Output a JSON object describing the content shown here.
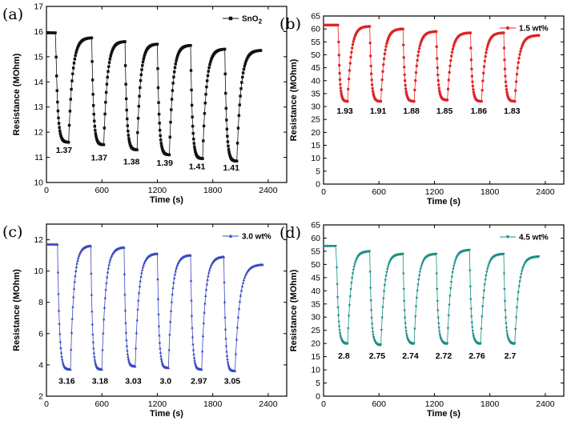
{
  "chart_data": [
    {
      "type": "line",
      "panel_label": "(a)",
      "xlabel": "Time (s)",
      "ylabel": "Resistance (MOhm)",
      "xlim": [
        0,
        2600
      ],
      "ylim": [
        10,
        17
      ],
      "xticks": [
        0,
        600,
        1200,
        1800,
        2400
      ],
      "yticks": [
        10,
        11,
        12,
        13,
        14,
        15,
        16,
        17
      ],
      "legend": "top-right",
      "color": "#111111",
      "marker": "square",
      "series": [
        {
          "name": "SnO2",
          "name_base": "SnO",
          "name_sub": "2"
        }
      ],
      "baseline_start": 15.95,
      "cycles": [
        {
          "t_on": 100,
          "t_off": 240,
          "min": 11.6,
          "peak": 15.75
        },
        {
          "t_on": 490,
          "t_off": 620,
          "min": 11.5,
          "peak": 15.6
        },
        {
          "t_on": 850,
          "t_off": 980,
          "min": 11.3,
          "peak": 15.5
        },
        {
          "t_on": 1200,
          "t_off": 1330,
          "min": 11.1,
          "peak": 15.45
        },
        {
          "t_on": 1560,
          "t_off": 1690,
          "min": 10.95,
          "peak": 15.3
        },
        {
          "t_on": 1930,
          "t_off": 2060,
          "min": 10.85,
          "peak": 15.25
        }
      ],
      "end_time": 2320,
      "annotations": [
        {
          "text": "1.37",
          "x": 190,
          "y": 11.3
        },
        {
          "text": "1.37",
          "x": 570,
          "y": 11.0
        },
        {
          "text": "1.38",
          "x": 920,
          "y": 10.85
        },
        {
          "text": "1.39",
          "x": 1280,
          "y": 10.8
        },
        {
          "text": "1.41",
          "x": 1630,
          "y": 10.65
        },
        {
          "text": "1.41",
          "x": 2000,
          "y": 10.6
        }
      ]
    },
    {
      "type": "line",
      "panel_label": "(b)",
      "xlabel": "Time (s)",
      "ylabel": "Resistance (MOhm)",
      "xlim": [
        0,
        2600
      ],
      "ylim": [
        0,
        65
      ],
      "xticks": [
        0,
        600,
        1200,
        1800,
        2400
      ],
      "yticks": [
        0,
        5,
        10,
        15,
        20,
        25,
        30,
        35,
        40,
        45,
        50,
        55,
        60,
        65
      ],
      "legend": "top-right",
      "color": "#e02424",
      "marker": "circle",
      "series": [
        {
          "name": "1.5 wt%"
        }
      ],
      "baseline_start": 61.5,
      "cycles": [
        {
          "t_on": 160,
          "t_off": 260,
          "min": 32,
          "peak": 61
        },
        {
          "t_on": 500,
          "t_off": 620,
          "min": 32,
          "peak": 60
        },
        {
          "t_on": 860,
          "t_off": 980,
          "min": 32,
          "peak": 59
        },
        {
          "t_on": 1220,
          "t_off": 1340,
          "min": 32.5,
          "peak": 58.5
        },
        {
          "t_on": 1590,
          "t_off": 1710,
          "min": 32,
          "peak": 58.5
        },
        {
          "t_on": 1950,
          "t_off": 2070,
          "min": 32,
          "peak": 57.5
        }
      ],
      "end_time": 2330,
      "annotations": [
        {
          "text": "1.93",
          "x": 230,
          "y": 28.5
        },
        {
          "text": "1.91",
          "x": 590,
          "y": 28.5
        },
        {
          "text": "1.88",
          "x": 950,
          "y": 28.5
        },
        {
          "text": "1.85",
          "x": 1310,
          "y": 28.5
        },
        {
          "text": "1.86",
          "x": 1680,
          "y": 28.5
        },
        {
          "text": "1.83",
          "x": 2040,
          "y": 28.5
        }
      ]
    },
    {
      "type": "line",
      "panel_label": "(c)",
      "xlabel": "Time (s)",
      "ylabel": "Resistance (MOhm)",
      "xlim": [
        0,
        2600
      ],
      "ylim": [
        2,
        13
      ],
      "xticks": [
        0,
        600,
        1200,
        1800,
        2400
      ],
      "yticks": [
        2,
        4,
        6,
        8,
        10,
        12
      ],
      "legend": "top-right",
      "color": "#3a48c0",
      "marker": "triangle",
      "series": [
        {
          "name": "3.0 wt%"
        }
      ],
      "baseline_start": 11.7,
      "cycles": [
        {
          "t_on": 120,
          "t_off": 260,
          "min": 3.7,
          "peak": 11.6
        },
        {
          "t_on": 480,
          "t_off": 600,
          "min": 3.7,
          "peak": 11.5
        },
        {
          "t_on": 840,
          "t_off": 960,
          "min": 3.9,
          "peak": 11.1
        },
        {
          "t_on": 1200,
          "t_off": 1320,
          "min": 3.8,
          "peak": 11.0
        },
        {
          "t_on": 1560,
          "t_off": 1680,
          "min": 3.7,
          "peak": 10.9
        },
        {
          "t_on": 1920,
          "t_off": 2040,
          "min": 3.6,
          "peak": 10.4
        }
      ],
      "end_time": 2340,
      "annotations": [
        {
          "text": "3.16",
          "x": 220,
          "y": 3.0
        },
        {
          "text": "3.18",
          "x": 580,
          "y": 3.0
        },
        {
          "text": "3.03",
          "x": 940,
          "y": 3.0
        },
        {
          "text": "3.0",
          "x": 1290,
          "y": 3.0
        },
        {
          "text": "2.97",
          "x": 1650,
          "y": 3.0
        },
        {
          "text": "3.05",
          "x": 2010,
          "y": 3.0
        }
      ]
    },
    {
      "type": "line",
      "panel_label": "(d)",
      "xlabel": "Time (s)",
      "ylabel": "Resistance (MOhm)",
      "xlim": [
        0,
        2600
      ],
      "ylim": [
        0,
        65
      ],
      "xticks": [
        0,
        600,
        1200,
        1800,
        2400
      ],
      "yticks": [
        0,
        5,
        10,
        15,
        20,
        25,
        30,
        35,
        40,
        45,
        50,
        55,
        60,
        65
      ],
      "legend": "top-right",
      "color": "#1a8f86",
      "marker": "triangle-down",
      "series": [
        {
          "name": "4.5 wt%"
        }
      ],
      "baseline_start": 57,
      "cycles": [
        {
          "t_on": 140,
          "t_off": 260,
          "min": 20,
          "peak": 55
        },
        {
          "t_on": 500,
          "t_off": 620,
          "min": 19.5,
          "peak": 54
        },
        {
          "t_on": 860,
          "t_off": 980,
          "min": 20,
          "peak": 54
        },
        {
          "t_on": 1220,
          "t_off": 1340,
          "min": 20,
          "peak": 55.5
        },
        {
          "t_on": 1580,
          "t_off": 1700,
          "min": 20,
          "peak": 54
        },
        {
          "t_on": 1950,
          "t_off": 2070,
          "min": 20,
          "peak": 53
        }
      ],
      "end_time": 2330,
      "annotations": [
        {
          "text": "2.8",
          "x": 220,
          "y": 15.5
        },
        {
          "text": "2.75",
          "x": 580,
          "y": 15.5
        },
        {
          "text": "2.74",
          "x": 940,
          "y": 15.5
        },
        {
          "text": "2.72",
          "x": 1300,
          "y": 15.5
        },
        {
          "text": "2.76",
          "x": 1660,
          "y": 15.5
        },
        {
          "text": "2.7",
          "x": 2020,
          "y": 15.5
        }
      ]
    }
  ]
}
